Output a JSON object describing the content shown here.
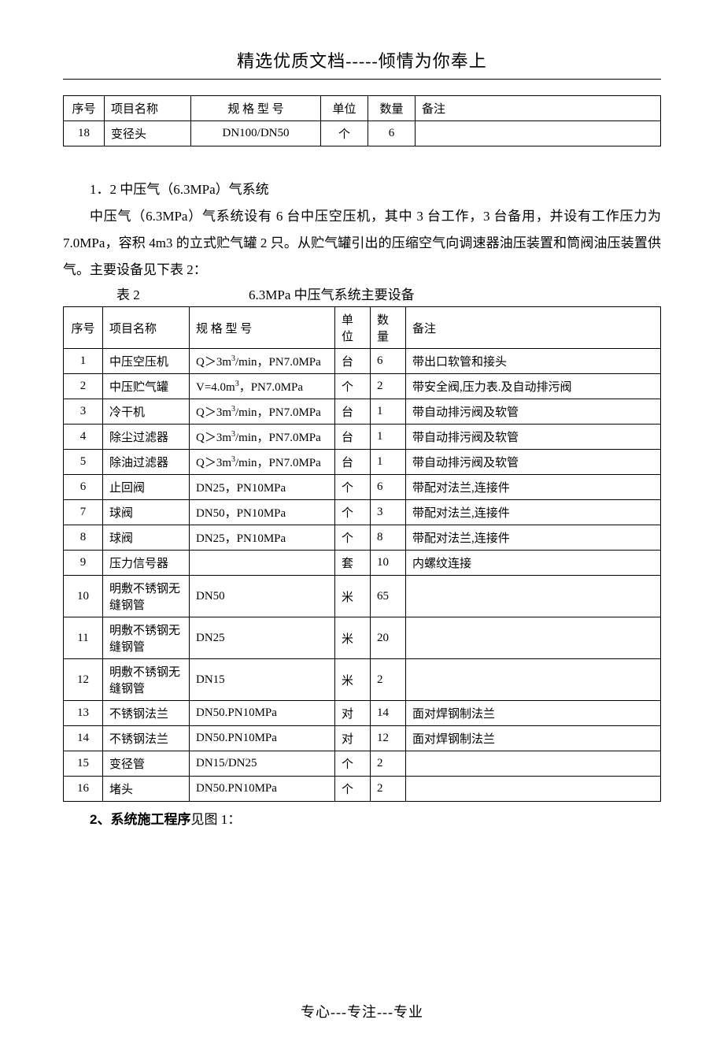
{
  "header": {
    "title": "精选优质文档-----倾情为你奉上"
  },
  "table1": {
    "columns": [
      "序号",
      "项目名称",
      "规 格 型 号",
      "单位",
      "数量",
      "备注"
    ],
    "rows": [
      {
        "seq": "18",
        "name": "变径头",
        "spec": "DN100/DN50",
        "unit": "个",
        "qty": "6",
        "note": ""
      }
    ]
  },
  "section1_2": {
    "title": "1．2 中压气（6.3MPa）气系统",
    "para1": "中压气（6.3MPa）气系统设有 6 台中压空压机，其中 3 台工作，3 台备用，并设有工作压力为 7.0MPa，容积 4m3 的立式贮气罐 2 只。从贮气罐引出的压缩空气向调速器油压装置和筒阀油压装置供气。主要设备见下表 2："
  },
  "table2_title": {
    "label": "表 2",
    "caption": "6.3MPa 中压气系统主要设备"
  },
  "table2": {
    "columns": [
      "序号",
      "项目名称",
      "规 格 型 号",
      "单位",
      "数量",
      "备注"
    ],
    "rows": [
      {
        "seq": "1",
        "name": "中压空压机",
        "spec": "Q＞3m³/min，PN7.0MPa",
        "unit": "台",
        "qty": "6",
        "note": "带出口软管和接头"
      },
      {
        "seq": "2",
        "name": "中压贮气罐",
        "spec": "V=4.0m³，PN7.0MPa",
        "unit": "个",
        "qty": "2",
        "note": "带安全阀,压力表.及自动排污阀"
      },
      {
        "seq": "3",
        "name": "冷干机",
        "spec": "Q＞3m³/min，PN7.0MPa",
        "unit": "台",
        "qty": "1",
        "note": "带自动排污阀及软管"
      },
      {
        "seq": "4",
        "name": "除尘过滤器",
        "spec": "Q＞3m³/min，PN7.0MPa",
        "unit": "台",
        "qty": "1",
        "note": "带自动排污阀及软管"
      },
      {
        "seq": "5",
        "name": "除油过滤器",
        "spec": "Q＞3m³/min，PN7.0MPa",
        "unit": "台",
        "qty": "1",
        "note": "带自动排污阀及软管"
      },
      {
        "seq": "6",
        "name": "止回阀",
        "spec": "DN25，PN10MPa",
        "unit": "个",
        "qty": "6",
        "note": "带配对法兰,连接件"
      },
      {
        "seq": "7",
        "name": "球阀",
        "spec": "DN50，PN10MPa",
        "unit": "个",
        "qty": "3",
        "note": "带配对法兰,连接件"
      },
      {
        "seq": "8",
        "name": "球阀",
        "spec": "DN25，PN10MPa",
        "unit": "个",
        "qty": "8",
        "note": "带配对法兰,连接件"
      },
      {
        "seq": "9",
        "name": "压力信号器",
        "spec": "",
        "unit": "套",
        "qty": "10",
        "note": "内螺纹连接"
      },
      {
        "seq": "10",
        "name": "明敷不锈钢无缝钢管",
        "spec": "DN50",
        "unit": "米",
        "qty": "65",
        "note": ""
      },
      {
        "seq": "11",
        "name": "明敷不锈钢无缝钢管",
        "spec": "DN25",
        "unit": "米",
        "qty": "20",
        "note": ""
      },
      {
        "seq": "12",
        "name": "明敷不锈钢无缝钢管",
        "spec": "DN15",
        "unit": "米",
        "qty": "2",
        "note": ""
      },
      {
        "seq": "13",
        "name": "不锈钢法兰",
        "spec": "DN50.PN10MPa",
        "unit": "对",
        "qty": "14",
        "note": "面对焊钢制法兰"
      },
      {
        "seq": "14",
        "name": "不锈钢法兰",
        "spec": "DN50.PN10MPa",
        "unit": "对",
        "qty": "12",
        "note": "面对焊钢制法兰"
      },
      {
        "seq": "15",
        "name": "变径管",
        "spec": "DN15/DN25",
        "unit": "个",
        "qty": "2",
        "note": ""
      },
      {
        "seq": "16",
        "name": "堵头",
        "spec": "DN50.PN10MPa",
        "unit": "个",
        "qty": "2",
        "note": ""
      }
    ]
  },
  "section2": {
    "bold": "2、系统施工程序",
    "rest": "见图 1："
  },
  "footer": {
    "text": "专心---专注---专业"
  }
}
